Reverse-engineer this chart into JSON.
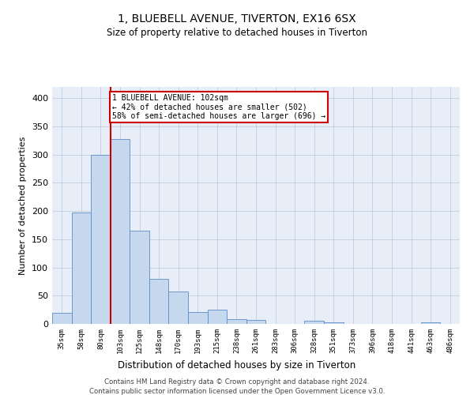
{
  "title_line1": "1, BLUEBELL AVENUE, TIVERTON, EX16 6SX",
  "title_line2": "Size of property relative to detached houses in Tiverton",
  "xlabel": "Distribution of detached houses by size in Tiverton",
  "ylabel": "Number of detached properties",
  "categories": [
    "35sqm",
    "58sqm",
    "80sqm",
    "103sqm",
    "125sqm",
    "148sqm",
    "170sqm",
    "193sqm",
    "215sqm",
    "238sqm",
    "261sqm",
    "283sqm",
    "306sqm",
    "328sqm",
    "351sqm",
    "373sqm",
    "396sqm",
    "418sqm",
    "441sqm",
    "463sqm",
    "486sqm"
  ],
  "values": [
    20,
    197,
    300,
    327,
    165,
    80,
    57,
    21,
    25,
    8,
    7,
    0,
    0,
    5,
    3,
    0,
    0,
    0,
    0,
    3,
    0
  ],
  "bar_color": "#c5d8ed",
  "bar_edge_color": "#5b8dc8",
  "property_line_index": 3,
  "property_line_color": "#cc0000",
  "annotation_line1": "1 BLUEBELL AVENUE: 102sqm",
  "annotation_line2": "← 42% of detached houses are smaller (502)",
  "annotation_line3": "58% of semi-detached houses are larger (696) →",
  "annotation_box_color": "#cc0000",
  "ylim": [
    0,
    420
  ],
  "yticks": [
    0,
    50,
    100,
    150,
    200,
    250,
    300,
    350,
    400
  ],
  "footer_line1": "Contains HM Land Registry data © Crown copyright and database right 2024.",
  "footer_line2": "Contains public sector information licensed under the Open Government Licence v3.0.",
  "bg_color": "#ffffff",
  "plot_bg_color": "#e8eef8",
  "grid_color": "#b8c8dc"
}
